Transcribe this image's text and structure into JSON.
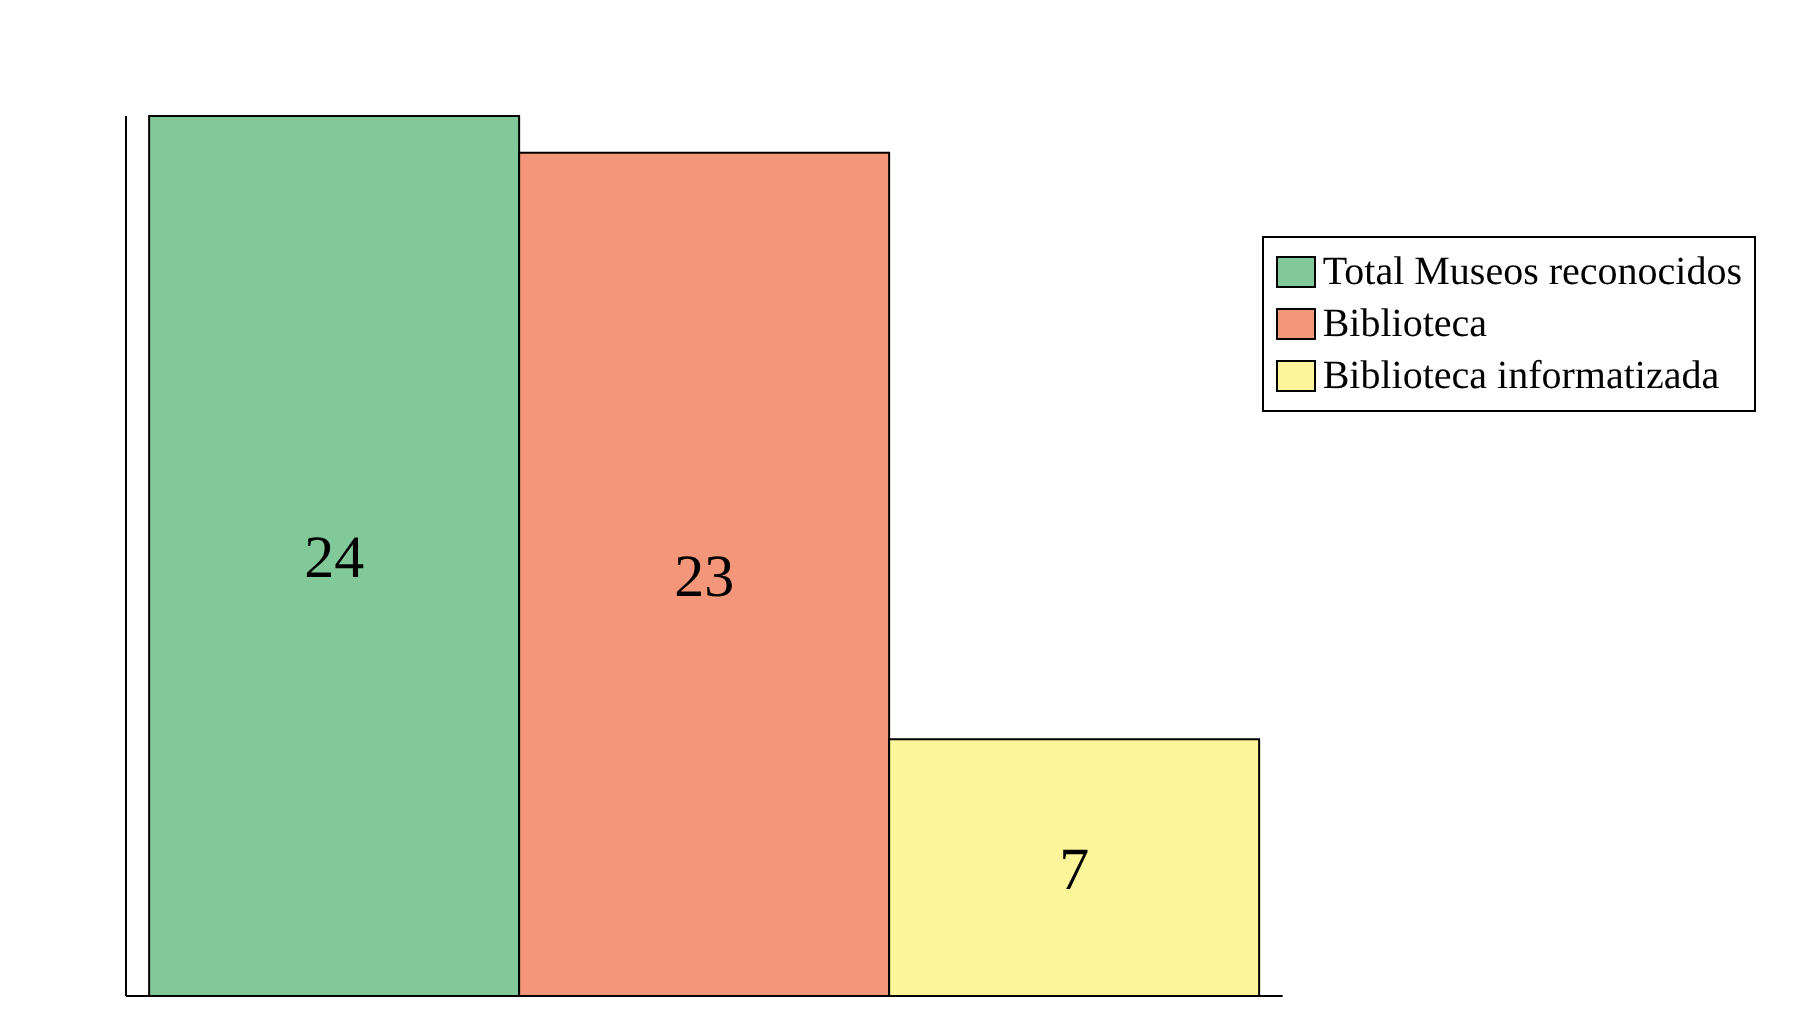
{
  "chart_data": {
    "type": "bar",
    "categories": [
      null
    ],
    "series": [
      {
        "name": "Total Museos reconocidos",
        "color": "#82c99a",
        "values": [
          24
        ]
      },
      {
        "name": "Biblioteca",
        "color": "#f4967a",
        "values": [
          23
        ]
      },
      {
        "name": "Biblioteca informatizada",
        "color": "#fdf59a",
        "values": [
          7
        ]
      }
    ],
    "legend": "top right",
    "data_labels": true
  }
}
